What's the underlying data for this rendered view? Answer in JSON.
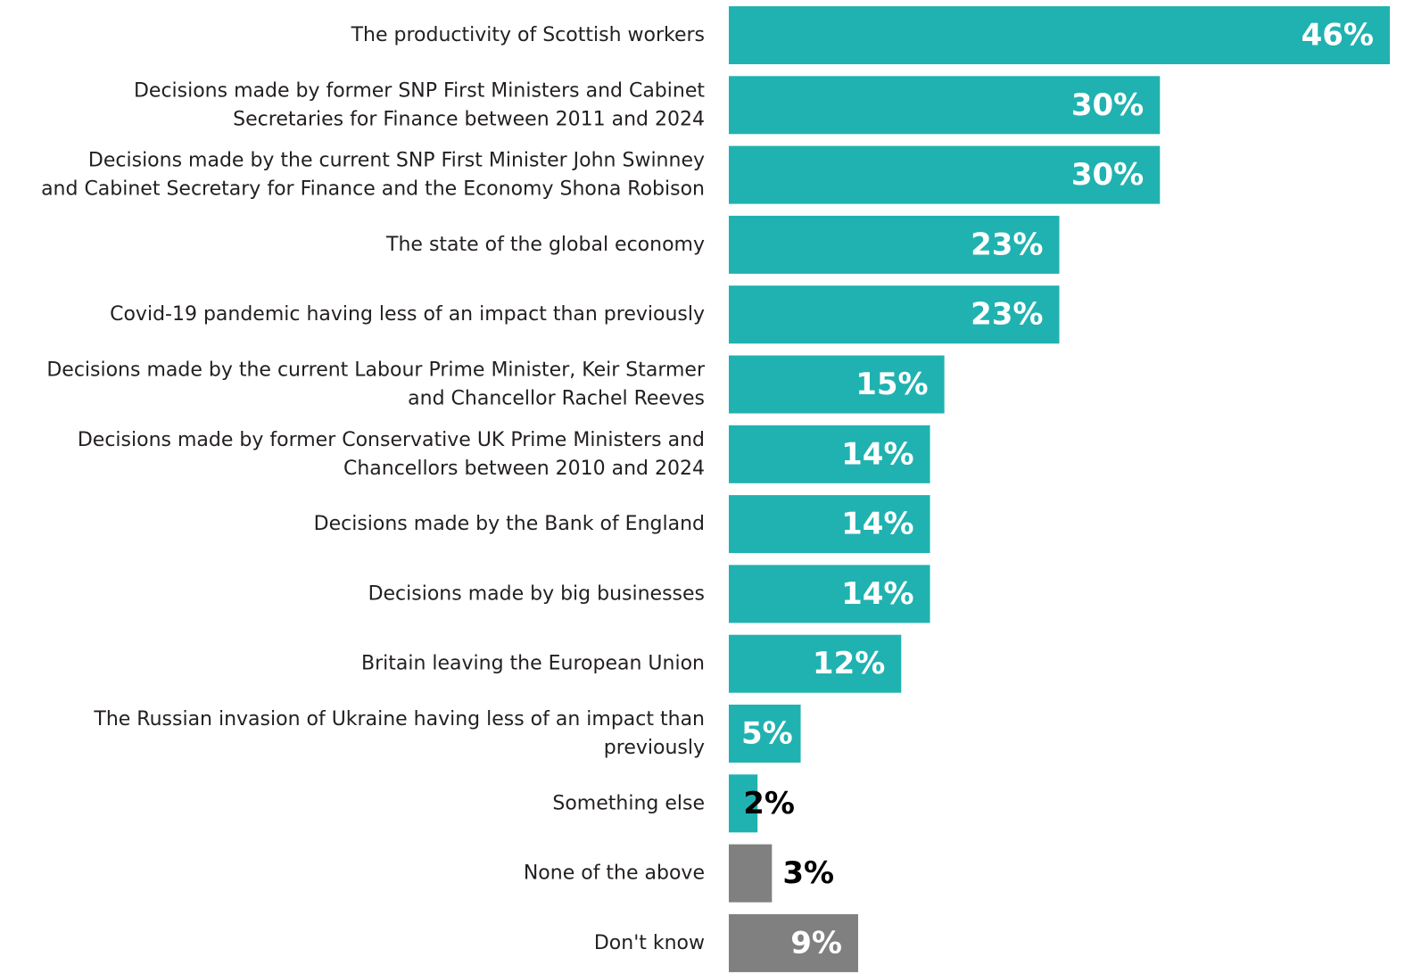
{
  "colors": {
    "primary": "#20b2b0",
    "neutral": "#808080",
    "label_inside": "#ffffff",
    "label_outside": "#000000",
    "text": "#231f20"
  },
  "chart_data": {
    "type": "bar",
    "orientation": "horizontal",
    "title": "",
    "xlabel": "",
    "ylabel": "",
    "xlim": [
      0,
      46
    ],
    "grid": false,
    "legend": "none",
    "unit": "%",
    "categories": [
      [
        "The productivity of Scottish workers"
      ],
      [
        "Decisions made by former SNP First Ministers and Cabinet",
        "Secretaries for Finance between 2011 and 2024"
      ],
      [
        "Decisions made by the current SNP First Minister John Swinney",
        "and Cabinet Secretary for Finance and the Economy Shona Robison"
      ],
      [
        "The state of the global economy"
      ],
      [
        "Covid-19 pandemic having less of an impact than previously"
      ],
      [
        "Decisions made by the current Labour Prime Minister, Keir Starmer",
        "and Chancellor Rachel Reeves"
      ],
      [
        "Decisions made by former Conservative UK Prime Ministers and",
        "Chancellors between 2010 and 2024"
      ],
      [
        "Decisions made by the Bank of England"
      ],
      [
        "Decisions made by big businesses"
      ],
      [
        "Britain leaving the European Union"
      ],
      [
        "The Russian invasion of Ukraine having less of an impact than",
        "previously"
      ],
      [
        "Something else"
      ],
      [
        "None of the above"
      ],
      [
        "Don't know"
      ]
    ],
    "values": [
      46,
      30,
      30,
      23,
      23,
      15,
      14,
      14,
      14,
      12,
      5,
      2,
      3,
      9
    ],
    "value_labels": [
      "46%",
      "30%",
      "30%",
      "23%",
      "23%",
      "15%",
      "14%",
      "14%",
      "14%",
      "12%",
      "5%",
      "2%",
      "3%",
      "9%"
    ],
    "bar_colors": [
      "primary",
      "primary",
      "primary",
      "primary",
      "primary",
      "primary",
      "primary",
      "primary",
      "primary",
      "primary",
      "primary",
      "primary",
      "neutral",
      "neutral"
    ]
  }
}
